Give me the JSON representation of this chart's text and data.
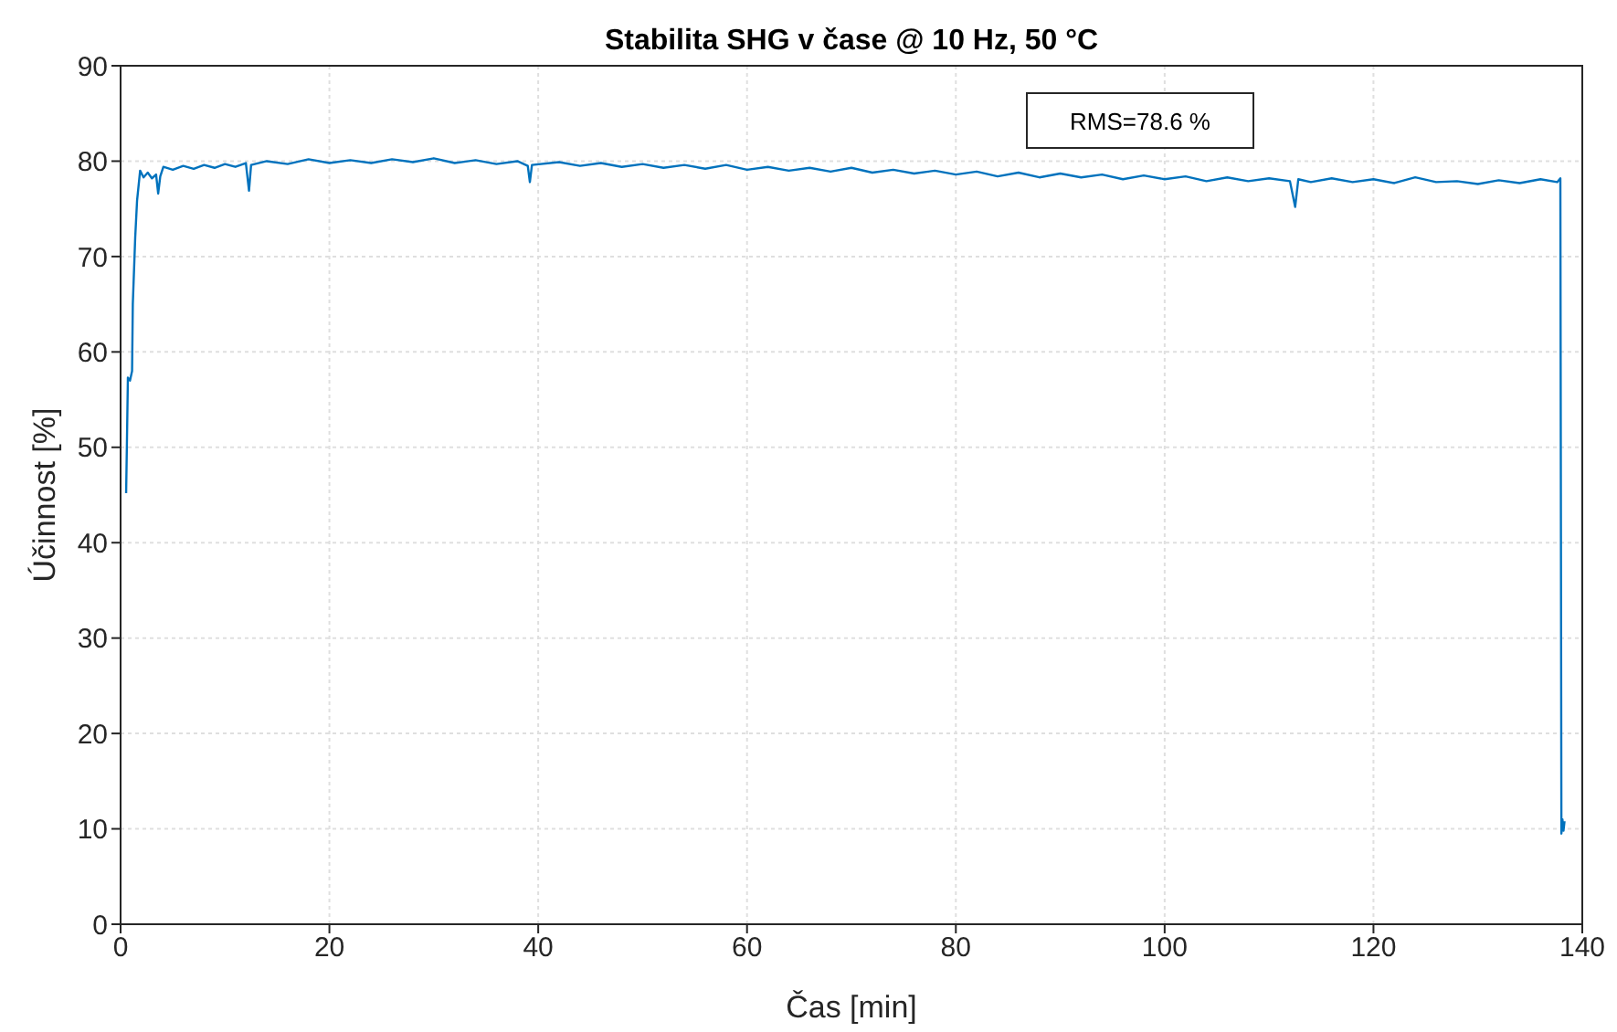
{
  "chart_data": {
    "type": "line",
    "title": "Stabilita SHG v čase @ 10 Hz, 50 °C",
    "xlabel": "Čas [min]",
    "ylabel": "Účinnost [%]",
    "annotations": [
      "RMS=78.6 %"
    ],
    "xlim": [
      0,
      140
    ],
    "xticks": [
      0,
      20,
      40,
      60,
      80,
      100,
      120,
      140
    ],
    "ylim": [
      0,
      90
    ],
    "yticks": [
      0,
      10,
      20,
      30,
      40,
      50,
      60,
      70,
      80,
      90
    ],
    "grid": true,
    "series": [
      {
        "color": "#0072bd",
        "x": [
          0.53,
          0.6,
          0.7,
          0.9,
          1.1,
          1.17,
          1.4,
          1.58,
          1.87,
          2.2,
          2.6,
          3.0,
          3.4,
          3.6,
          3.8,
          4.1,
          5,
          6,
          7,
          8,
          9,
          10,
          11,
          12,
          12.3,
          12.5,
          14,
          16,
          18,
          20,
          22,
          24,
          26,
          28,
          30,
          32,
          34,
          36,
          38,
          39,
          39.2,
          39.4,
          42,
          44,
          46,
          48,
          50,
          52,
          54,
          56,
          58,
          60,
          62,
          64,
          66,
          68,
          70,
          72,
          74,
          76,
          78,
          80,
          82,
          84,
          86,
          88,
          90,
          92,
          94,
          96,
          98,
          100,
          102,
          104,
          106,
          108,
          110,
          112,
          112.5,
          112.8,
          114,
          116,
          118,
          120,
          122,
          124,
          126,
          128,
          130,
          132,
          134,
          136,
          137.6,
          137.9,
          138.0,
          138.1,
          138.2,
          138.3
        ],
        "values": [
          45.2,
          50,
          57.3,
          57,
          58,
          65,
          72,
          75.9,
          79,
          78.3,
          78.8,
          78.2,
          78.6,
          76.6,
          78.4,
          79.4,
          79.1,
          79.5,
          79.2,
          79.6,
          79.3,
          79.7,
          79.4,
          79.8,
          76.9,
          79.6,
          80,
          79.7,
          80.2,
          79.8,
          80.1,
          79.8,
          80.2,
          79.9,
          80.3,
          79.8,
          80.1,
          79.7,
          80,
          79.5,
          77.8,
          79.6,
          79.9,
          79.5,
          79.8,
          79.4,
          79.7,
          79.3,
          79.6,
          79.2,
          79.6,
          79.1,
          79.4,
          79.0,
          79.3,
          78.9,
          79.3,
          78.8,
          79.1,
          78.7,
          79.0,
          78.6,
          78.9,
          78.4,
          78.8,
          78.3,
          78.7,
          78.3,
          78.6,
          78.1,
          78.5,
          78.1,
          78.4,
          77.9,
          78.3,
          77.9,
          78.2,
          77.9,
          75.2,
          78.1,
          77.8,
          78.2,
          77.8,
          78.1,
          77.7,
          78.3,
          77.8,
          77.9,
          77.6,
          78.0,
          77.7,
          78.1,
          77.8,
          78.2,
          9.5,
          11,
          9.8,
          10.8
        ]
      }
    ]
  }
}
